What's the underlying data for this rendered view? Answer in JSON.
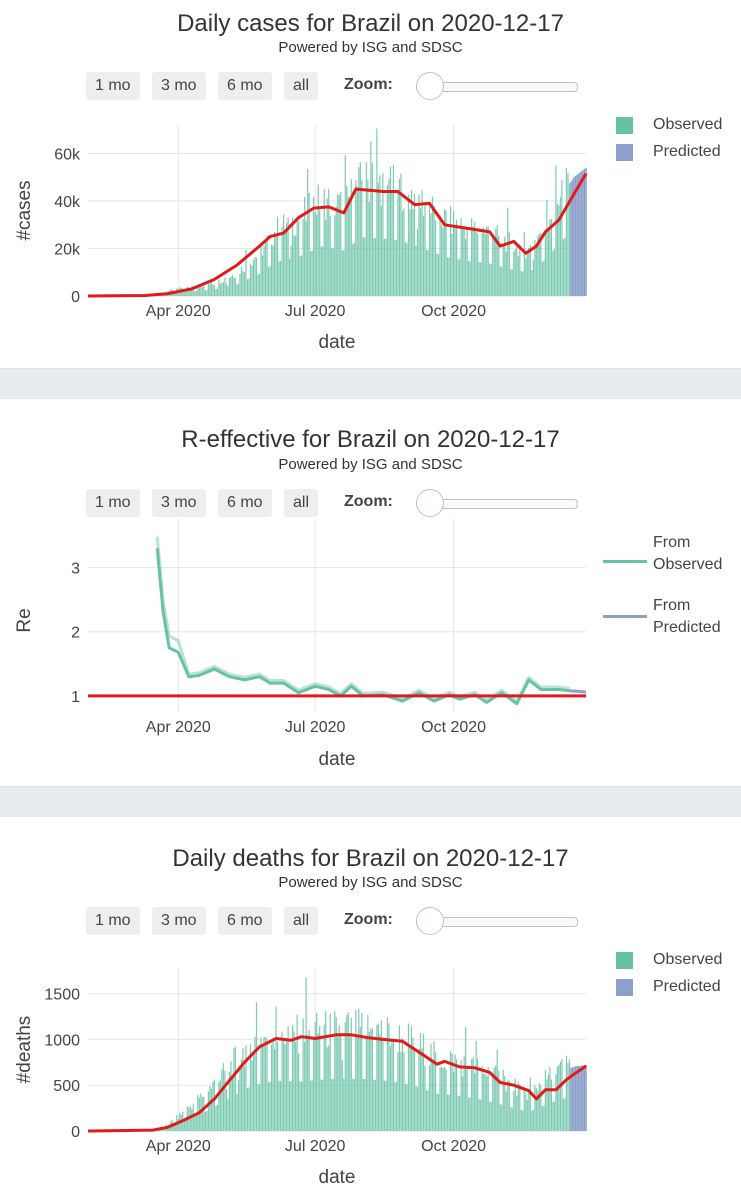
{
  "panels": [
    {
      "title": "Daily cases for Brazil on 2020-12-17",
      "subtitle": "Powered by ISG and SDSC",
      "range_buttons": [
        "1 mo",
        "3 mo",
        "6 mo",
        "all"
      ],
      "zoom_label": "Zoom:",
      "legend": [
        {
          "label": "Observed",
          "color": "#66c2a5"
        },
        {
          "label": "Predicted",
          "color": "#8da0cb"
        }
      ]
    },
    {
      "title": "R-effective for Brazil on 2020-12-17",
      "subtitle": "Powered by ISG and SDSC",
      "range_buttons": [
        "1 mo",
        "3 mo",
        "6 mo",
        "all"
      ],
      "zoom_label": "Zoom:",
      "legend": [
        {
          "label": "From",
          "label2": "Observed",
          "color": "#66c2a5"
        },
        {
          "label": "From",
          "label2": "Predicted",
          "color": "#8da0cb"
        }
      ]
    },
    {
      "title": "Daily deaths for Brazil on 2020-12-17",
      "subtitle": "Powered by ISG and SDSC",
      "range_buttons": [
        "1 mo",
        "3 mo",
        "6 mo",
        "all"
      ],
      "zoom_label": "Zoom:",
      "legend": [
        {
          "label": "Observed",
          "color": "#66c2a5"
        },
        {
          "label": "Predicted",
          "color": "#8da0cb"
        }
      ]
    }
  ],
  "chart_data": [
    {
      "type": "bar",
      "title": "Daily cases for Brazil on 2020-12-17",
      "xlabel": "date",
      "ylabel": "#cases",
      "x_range": [
        "2020-02-01",
        "2020-12-28"
      ],
      "ylim": [
        0,
        72000
      ],
      "yticks": [
        0,
        20000,
        40000,
        60000
      ],
      "ytick_labels": [
        "0",
        "20k",
        "40k",
        "60k"
      ],
      "xticks": [
        "2020-04-01",
        "2020-07-01",
        "2020-10-01"
      ],
      "xtick_labels": [
        "Apr 2020",
        "Jul 2020",
        "Oct 2020"
      ],
      "grid": true,
      "observed_anchors": [
        [
          "2020-02-26",
          0
        ],
        [
          "2020-03-10",
          0
        ],
        [
          "2020-03-25",
          2000
        ],
        [
          "2020-04-10",
          3500
        ],
        [
          "2020-04-25",
          5000
        ],
        [
          "2020-05-10",
          9000
        ],
        [
          "2020-05-25",
          17000
        ],
        [
          "2020-06-05",
          26000
        ],
        [
          "2020-06-20",
          30000
        ],
        [
          "2020-07-05",
          38000
        ],
        [
          "2020-07-20",
          35000
        ],
        [
          "2020-08-01",
          45000
        ],
        [
          "2020-08-15",
          44000
        ],
        [
          "2020-08-28",
          42000
        ],
        [
          "2020-09-10",
          37000
        ],
        [
          "2020-09-25",
          30000
        ],
        [
          "2020-10-10",
          27000
        ],
        [
          "2020-10-25",
          25000
        ],
        [
          "2020-11-10",
          20000
        ],
        [
          "2020-11-20",
          18000
        ],
        [
          "2020-12-01",
          28000
        ],
        [
          "2020-12-10",
          40000
        ],
        [
          "2020-12-17",
          48000
        ]
      ],
      "predicted_range": [
        "2020-12-18",
        "2020-12-28"
      ],
      "predicted_values": [
        48000,
        49000,
        50000,
        50500,
        51000,
        51500,
        52000,
        52500,
        53000,
        53500,
        54000
      ],
      "trend": [
        [
          "2020-02-01",
          0
        ],
        [
          "2020-03-10",
          200
        ],
        [
          "2020-03-25",
          1000
        ],
        [
          "2020-04-10",
          3000
        ],
        [
          "2020-04-25",
          7000
        ],
        [
          "2020-05-10",
          13000
        ],
        [
          "2020-05-25",
          21000
        ],
        [
          "2020-06-01",
          25000
        ],
        [
          "2020-06-10",
          26500
        ],
        [
          "2020-06-20",
          33000
        ],
        [
          "2020-06-30",
          37000
        ],
        [
          "2020-07-10",
          37500
        ],
        [
          "2020-07-20",
          35000
        ],
        [
          "2020-07-28",
          45000
        ],
        [
          "2020-08-15",
          44000
        ],
        [
          "2020-08-25",
          44000
        ],
        [
          "2020-09-05",
          38500
        ],
        [
          "2020-09-15",
          39000
        ],
        [
          "2020-09-25",
          30000
        ],
        [
          "2020-10-05",
          29000
        ],
        [
          "2020-10-15",
          28000
        ],
        [
          "2020-10-25",
          27000
        ],
        [
          "2020-11-01",
          21000
        ],
        [
          "2020-11-10",
          23000
        ],
        [
          "2020-11-18",
          18000
        ],
        [
          "2020-11-25",
          21000
        ],
        [
          "2020-12-01",
          27000
        ],
        [
          "2020-12-10",
          32000
        ],
        [
          "2020-12-20",
          43000
        ],
        [
          "2020-12-28",
          51500
        ]
      ]
    },
    {
      "type": "line",
      "title": "R-effective for Brazil on 2020-12-17",
      "xlabel": "date",
      "ylabel": "Re",
      "x_range": [
        "2020-02-01",
        "2020-12-28"
      ],
      "ylim": [
        0.75,
        3.6
      ],
      "yticks": [
        1,
        2,
        3
      ],
      "ytick_labels": [
        "1",
        "2",
        "3"
      ],
      "xticks": [
        "2020-04-01",
        "2020-07-01",
        "2020-10-01"
      ],
      "xtick_labels": [
        "Apr 2020",
        "Jul 2020",
        "Oct 2020"
      ],
      "grid": true,
      "series": [
        {
          "name": "From Observed",
          "color": "#66c2a5",
          "points": [
            [
              "2020-03-18",
              3.3
            ],
            [
              "2020-03-22",
              2.3
            ],
            [
              "2020-03-26",
              1.75
            ],
            [
              "2020-04-01",
              1.68
            ],
            [
              "2020-04-08",
              1.3
            ],
            [
              "2020-04-15",
              1.32
            ],
            [
              "2020-04-25",
              1.42
            ],
            [
              "2020-05-05",
              1.3
            ],
            [
              "2020-05-15",
              1.25
            ],
            [
              "2020-05-25",
              1.3
            ],
            [
              "2020-06-01",
              1.2
            ],
            [
              "2020-06-10",
              1.2
            ],
            [
              "2020-06-20",
              1.05
            ],
            [
              "2020-07-01",
              1.15
            ],
            [
              "2020-07-10",
              1.1
            ],
            [
              "2020-07-18",
              1.0
            ],
            [
              "2020-07-25",
              1.15
            ],
            [
              "2020-08-02",
              1.0
            ],
            [
              "2020-08-15",
              1.02
            ],
            [
              "2020-08-28",
              0.92
            ],
            [
              "2020-09-08",
              1.05
            ],
            [
              "2020-09-18",
              0.92
            ],
            [
              "2020-09-28",
              1.02
            ],
            [
              "2020-10-05",
              0.95
            ],
            [
              "2020-10-15",
              1.02
            ],
            [
              "2020-10-23",
              0.9
            ],
            [
              "2020-11-02",
              1.05
            ],
            [
              "2020-11-12",
              0.88
            ],
            [
              "2020-11-20",
              1.25
            ],
            [
              "2020-11-28",
              1.1
            ],
            [
              "2020-12-10",
              1.1
            ],
            [
              "2020-12-17",
              1.08
            ]
          ]
        },
        {
          "name": "From Predicted",
          "color": "#8da0cb",
          "points": [
            [
              "2020-12-17",
              1.08
            ],
            [
              "2020-12-24",
              1.07
            ],
            [
              "2020-12-28",
              1.06
            ]
          ]
        },
        {
          "name": "",
          "color": "#e31a1c",
          "points": [
            [
              "2020-02-01",
              1.0
            ],
            [
              "2020-12-28",
              1.0
            ]
          ]
        }
      ]
    },
    {
      "type": "bar",
      "title": "Daily deaths for Brazil on 2020-12-17",
      "xlabel": "date",
      "ylabel": "#deaths",
      "x_range": [
        "2020-02-01",
        "2020-12-28"
      ],
      "ylim": [
        0,
        1780
      ],
      "yticks": [
        0,
        500,
        1000,
        1500
      ],
      "ytick_labels": [
        "0",
        "500",
        "1000",
        "1500"
      ],
      "xticks": [
        "2020-04-01",
        "2020-07-01",
        "2020-10-01"
      ],
      "xtick_labels": [
        "Apr 2020",
        "Jul 2020",
        "Oct 2020"
      ],
      "grid": true,
      "observed_anchors": [
        [
          "2020-03-15",
          0
        ],
        [
          "2020-03-25",
          60
        ],
        [
          "2020-04-05",
          200
        ],
        [
          "2020-04-20",
          400
        ],
        [
          "2020-05-05",
          650
        ],
        [
          "2020-05-20",
          900
        ],
        [
          "2020-06-05",
          1000
        ],
        [
          "2020-06-20",
          980
        ],
        [
          "2020-07-05",
          1020
        ],
        [
          "2020-07-20",
          1040
        ],
        [
          "2020-08-05",
          1030
        ],
        [
          "2020-08-20",
          990
        ],
        [
          "2020-09-05",
          900
        ],
        [
          "2020-09-20",
          740
        ],
        [
          "2020-10-05",
          700
        ],
        [
          "2020-10-20",
          620
        ],
        [
          "2020-11-05",
          500
        ],
        [
          "2020-11-20",
          380
        ],
        [
          "2020-12-01",
          520
        ],
        [
          "2020-12-10",
          620
        ],
        [
          "2020-12-17",
          680
        ]
      ],
      "predicted_range": [
        "2020-12-18",
        "2020-12-28"
      ],
      "predicted_values": [
        690,
        695,
        700,
        705,
        708,
        710,
        712,
        714,
        716,
        718,
        720
      ],
      "trend": [
        [
          "2020-02-01",
          0
        ],
        [
          "2020-03-15",
          10
        ],
        [
          "2020-03-25",
          40
        ],
        [
          "2020-04-05",
          120
        ],
        [
          "2020-04-15",
          200
        ],
        [
          "2020-04-25",
          350
        ],
        [
          "2020-05-05",
          550
        ],
        [
          "2020-05-15",
          750
        ],
        [
          "2020-05-25",
          920
        ],
        [
          "2020-06-05",
          1010
        ],
        [
          "2020-06-15",
          990
        ],
        [
          "2020-06-22",
          1030
        ],
        [
          "2020-07-01",
          1010
        ],
        [
          "2020-07-15",
          1050
        ],
        [
          "2020-07-25",
          1050
        ],
        [
          "2020-08-05",
          1020
        ],
        [
          "2020-08-15",
          1000
        ],
        [
          "2020-08-28",
          980
        ],
        [
          "2020-09-10",
          840
        ],
        [
          "2020-09-20",
          730
        ],
        [
          "2020-09-25",
          760
        ],
        [
          "2020-10-05",
          700
        ],
        [
          "2020-10-15",
          690
        ],
        [
          "2020-10-25",
          640
        ],
        [
          "2020-11-01",
          530
        ],
        [
          "2020-11-10",
          500
        ],
        [
          "2020-11-20",
          440
        ],
        [
          "2020-11-25",
          350
        ],
        [
          "2020-12-01",
          450
        ],
        [
          "2020-12-08",
          450
        ],
        [
          "2020-12-15",
          560
        ],
        [
          "2020-12-20",
          620
        ],
        [
          "2020-12-28",
          710
        ]
      ]
    }
  ]
}
